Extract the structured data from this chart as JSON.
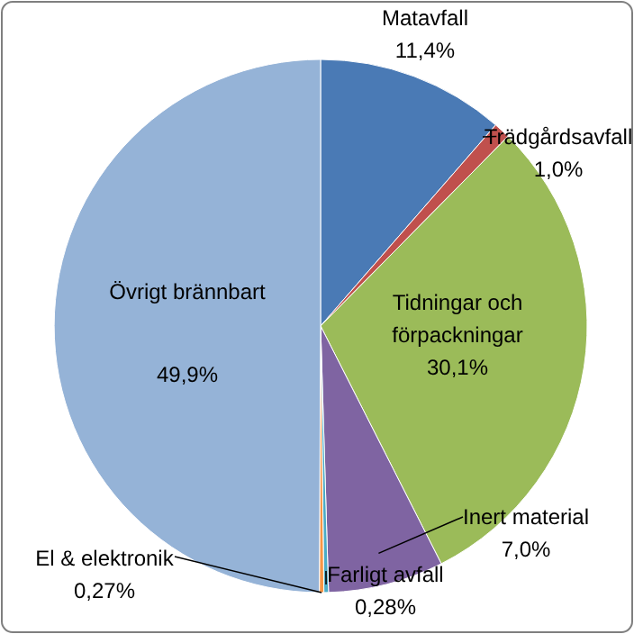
{
  "chart_data": {
    "type": "pie",
    "categories": [
      "Matavfall",
      "Trädgårdsavfall",
      "Tidningar och förpackningar",
      "Inert material",
      "Farligt avfall",
      "El & elektronik",
      "Övrigt brännbart"
    ],
    "values": [
      11.4,
      1.0,
      30.1,
      7.0,
      0.28,
      0.27,
      49.9
    ],
    "value_labels": [
      "11,4%",
      "1,0%",
      "30,1%",
      "7,0%",
      "0,28%",
      "0,27%",
      "49,9%"
    ],
    "colors": [
      "#4a7ab5",
      "#c0504d",
      "#9bbb59",
      "#7f64a2",
      "#4bacc6",
      "#f79646",
      "#95b3d7"
    ]
  }
}
